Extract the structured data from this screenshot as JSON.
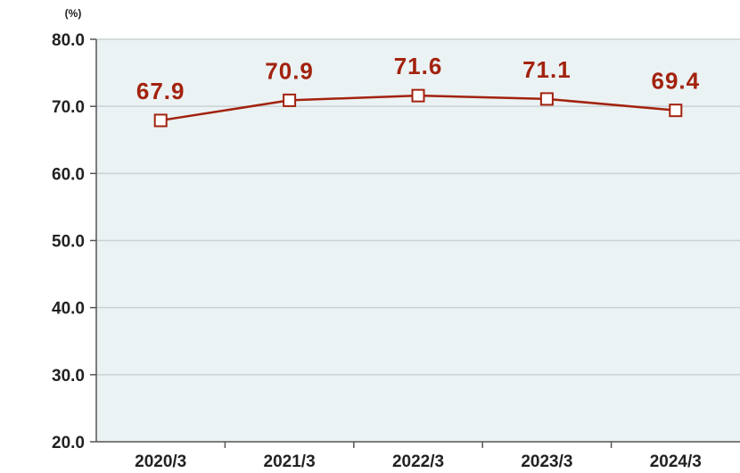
{
  "chart_data": {
    "type": "line",
    "unit": "(%)",
    "categories": [
      "2020/3",
      "2021/3",
      "2022/3",
      "2023/3",
      "2024/3"
    ],
    "series": [
      {
        "values": [
          67.9,
          70.9,
          71.6,
          71.1,
          69.4
        ]
      }
    ],
    "data_labels": [
      "67.9",
      "70.9",
      "71.6",
      "71.1",
      "69.4"
    ],
    "yticks": [
      "80.0",
      "70.0",
      "60.0",
      "50.0",
      "40.0",
      "30.0",
      "20.0"
    ],
    "ylim": [
      20,
      80
    ],
    "grid": true,
    "colors": {
      "line": "#a2220e",
      "plot_background": "#ebf2f3",
      "grid": "#c9d2d4",
      "axis": "#555555"
    }
  }
}
